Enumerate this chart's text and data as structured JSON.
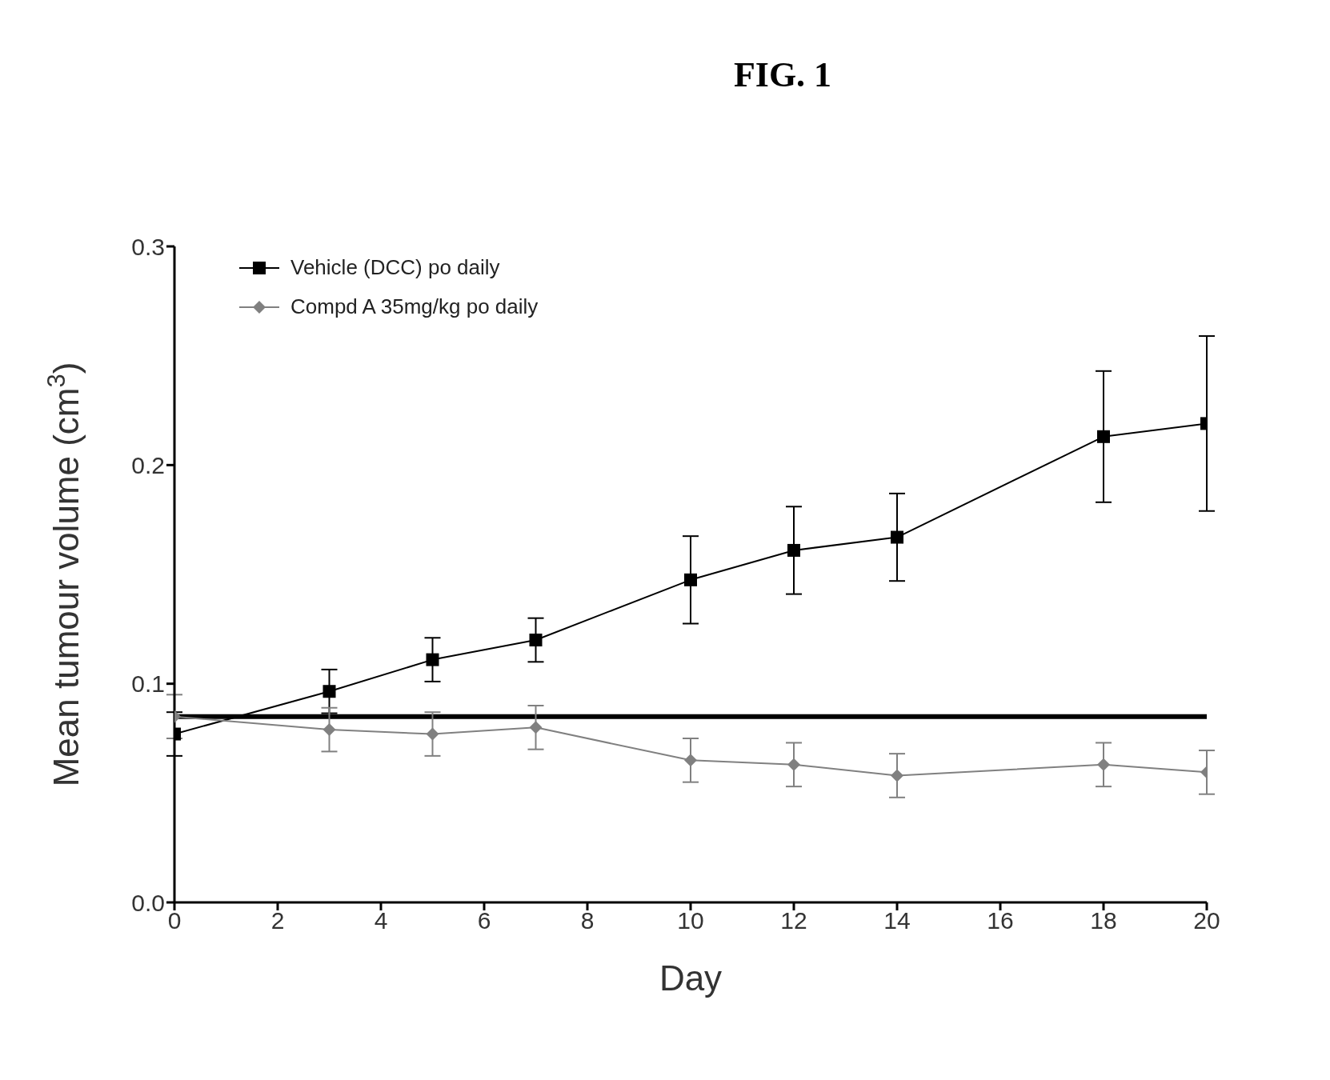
{
  "chart_data": {
    "type": "line",
    "title": "FIG. 1",
    "xlabel": "Day",
    "ylabel": "Mean tumour volume (cm$^{3}$)",
    "xlim": [
      0,
      20
    ],
    "xticks": [
      0,
      2,
      4,
      6,
      8,
      10,
      12,
      14,
      16,
      18,
      20
    ],
    "ylim": [
      0,
      0.3
    ],
    "yticks": [
      {
        "value": 0,
        "label": "0.0"
      },
      {
        "value": 0.1,
        "label": "0.1"
      },
      {
        "value": 0.2,
        "label": "0.2"
      },
      {
        "value": 0.3,
        "label": "0.3"
      }
    ],
    "grid": false,
    "legend": "top left",
    "line_style": "solid",
    "ref_lines": [
      {
        "axis": "y",
        "value": 0.085,
        "color": "#000000"
      }
    ],
    "series": [
      {
        "name": "Vehicle (DCC) po daily",
        "color": "#000000",
        "marker": "square",
        "x": [
          0,
          3,
          5,
          7,
          10,
          12,
          14,
          18,
          20
        ],
        "values": [
          0.077,
          0.0965,
          0.111,
          0.12,
          0.1475,
          0.161,
          0.167,
          0.213,
          0.219
        ],
        "errors": [
          0.01,
          0.01,
          0.01,
          0.01,
          0.02,
          0.02,
          0.02,
          0.03,
          0.04
        ]
      },
      {
        "name": "Compd A 35mg/kg po daily",
        "color": "#808080",
        "marker": "diamond",
        "x": [
          0,
          3,
          5,
          7,
          10,
          12,
          14,
          18,
          20
        ],
        "values": [
          0.085,
          0.079,
          0.077,
          0.08,
          0.065,
          0.063,
          0.058,
          0.063,
          0.0595
        ],
        "errors": [
          0.01,
          0.01,
          0.01,
          0.01,
          0.01,
          0.01,
          0.01,
          0.01,
          0.01
        ]
      }
    ]
  }
}
